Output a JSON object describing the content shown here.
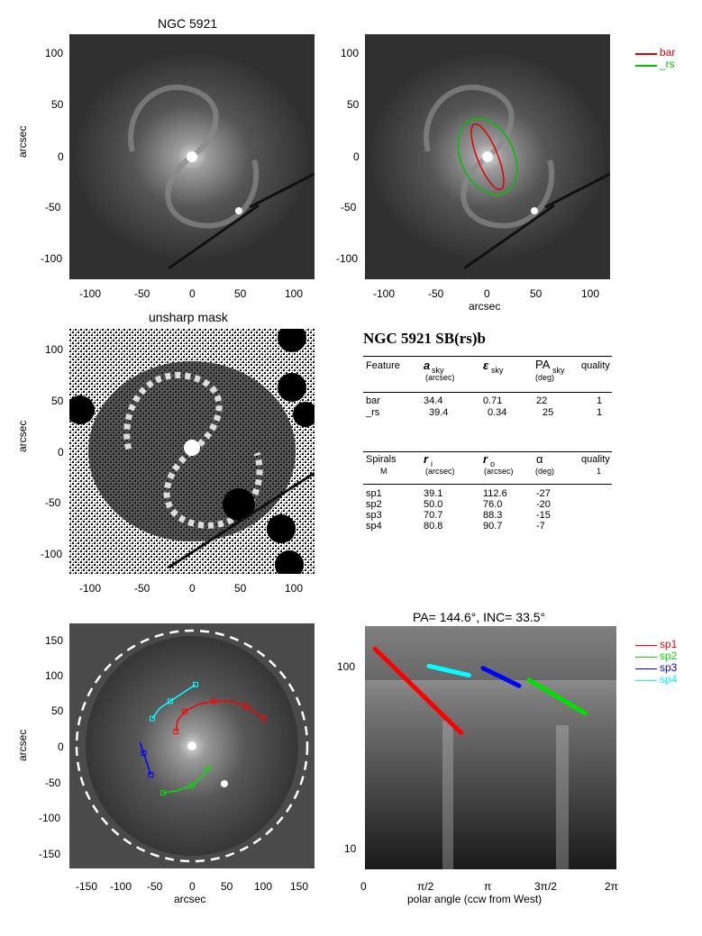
{
  "chart_data": [
    {
      "type": "image",
      "title": "NGC 5921",
      "ylabel": "arcsec",
      "xlim": [
        -120,
        120
      ],
      "ylim": [
        -120,
        120
      ],
      "xticks": [
        -100,
        -50,
        0,
        50,
        100
      ],
      "yticks": [
        -100,
        -50,
        0,
        50,
        100
      ]
    },
    {
      "type": "image",
      "xlabel": "arcsec",
      "xlim": [
        -120,
        120
      ],
      "ylim": [
        -120,
        120
      ],
      "xticks": [
        -100,
        -50,
        0,
        50,
        100
      ],
      "yticks": [
        -100,
        -50,
        0,
        50,
        100
      ],
      "legend": [
        {
          "name": "bar",
          "color": "#e00000"
        },
        {
          "name": "_rs",
          "color": "#00c000"
        }
      ],
      "ellipses": [
        {
          "name": "bar",
          "a_sky": 34.4,
          "eps": 0.71,
          "pa": 22,
          "color": "#e00000"
        },
        {
          "name": "_rs",
          "a_sky": 39.4,
          "eps": 0.34,
          "pa": 25,
          "color": "#00c000"
        }
      ]
    },
    {
      "type": "image",
      "title": "unsharp mask",
      "ylabel": "arcsec",
      "xlim": [
        -120,
        120
      ],
      "ylim": [
        -120,
        120
      ],
      "xticks": [
        -100,
        -50,
        0,
        50,
        100
      ],
      "yticks": [
        -100,
        -50,
        0,
        50,
        100
      ]
    },
    {
      "type": "table",
      "title": "NGC 5921  SB(rs)b",
      "ring_table": {
        "headers": [
          "Feature",
          "a",
          "ε",
          "PA",
          "quality"
        ],
        "header_subs": [
          "",
          "sky",
          "sky",
          "sky",
          ""
        ],
        "header_units": [
          "",
          "(arcsec)",
          "",
          "(deg)",
          ""
        ],
        "rows": [
          [
            "bar",
            "34.4",
            "0.71",
            "22",
            "1"
          ],
          [
            "_rs",
            "39.4",
            "0.34",
            "25",
            "1"
          ]
        ]
      },
      "spiral_table": {
        "headers": [
          "Spirals",
          "r",
          "r",
          "α",
          "quality"
        ],
        "header_subs": [
          "",
          "i",
          "o",
          "",
          ""
        ],
        "header_units": [
          "M",
          "(arcsec)",
          "(arcsec)",
          "(deg)",
          "1"
        ],
        "rows": [
          [
            "sp1",
            "39.1",
            "112.6",
            "-27",
            ""
          ],
          [
            "sp2",
            "50.0",
            "76.0",
            "-20",
            ""
          ],
          [
            "sp3",
            "70.7",
            "88.3",
            "-15",
            ""
          ],
          [
            "sp4",
            "80.8",
            "90.7",
            " -7",
            ""
          ]
        ]
      }
    },
    {
      "type": "image",
      "xlabel": "arcsec",
      "ylabel": "arcsec",
      "xlim": [
        -170,
        170
      ],
      "ylim": [
        -170,
        170
      ],
      "xticks": [
        -150,
        -100,
        -50,
        0,
        50,
        100,
        150
      ],
      "yticks": [
        -150,
        -100,
        -50,
        0,
        50,
        100,
        150
      ],
      "outer_circle_radius": 160
    },
    {
      "type": "line",
      "title": "PA= 144.6°, INC=  33.5°",
      "xlabel": "polar angle (ccw from West)",
      "xlim": [
        0,
        6.2832
      ],
      "ylim": [
        7,
        150
      ],
      "ylog": true,
      "xtick_labels": [
        "0",
        "π/2",
        "π",
        "3π/2",
        "2π"
      ],
      "ytick_labels": [
        "10",
        "100"
      ],
      "legend": [
        "sp1",
        "sp2",
        "sp3",
        "sp4"
      ],
      "series": [
        {
          "name": "sp1",
          "color": "#ff0000",
          "x": [
            0.25,
            2.4
          ],
          "y": [
            112.6,
            39.1
          ]
        },
        {
          "name": "sp2",
          "color": "#00e000",
          "x": [
            4.1,
            5.5
          ],
          "y": [
            76.0,
            50.0
          ]
        },
        {
          "name": "sp3",
          "color": "#0000ff",
          "x": [
            2.95,
            3.85
          ],
          "y": [
            88.3,
            70.7
          ]
        },
        {
          "name": "sp4",
          "color": "#00ffff",
          "x": [
            1.6,
            2.6
          ],
          "y": [
            90.7,
            80.8
          ]
        }
      ]
    }
  ]
}
